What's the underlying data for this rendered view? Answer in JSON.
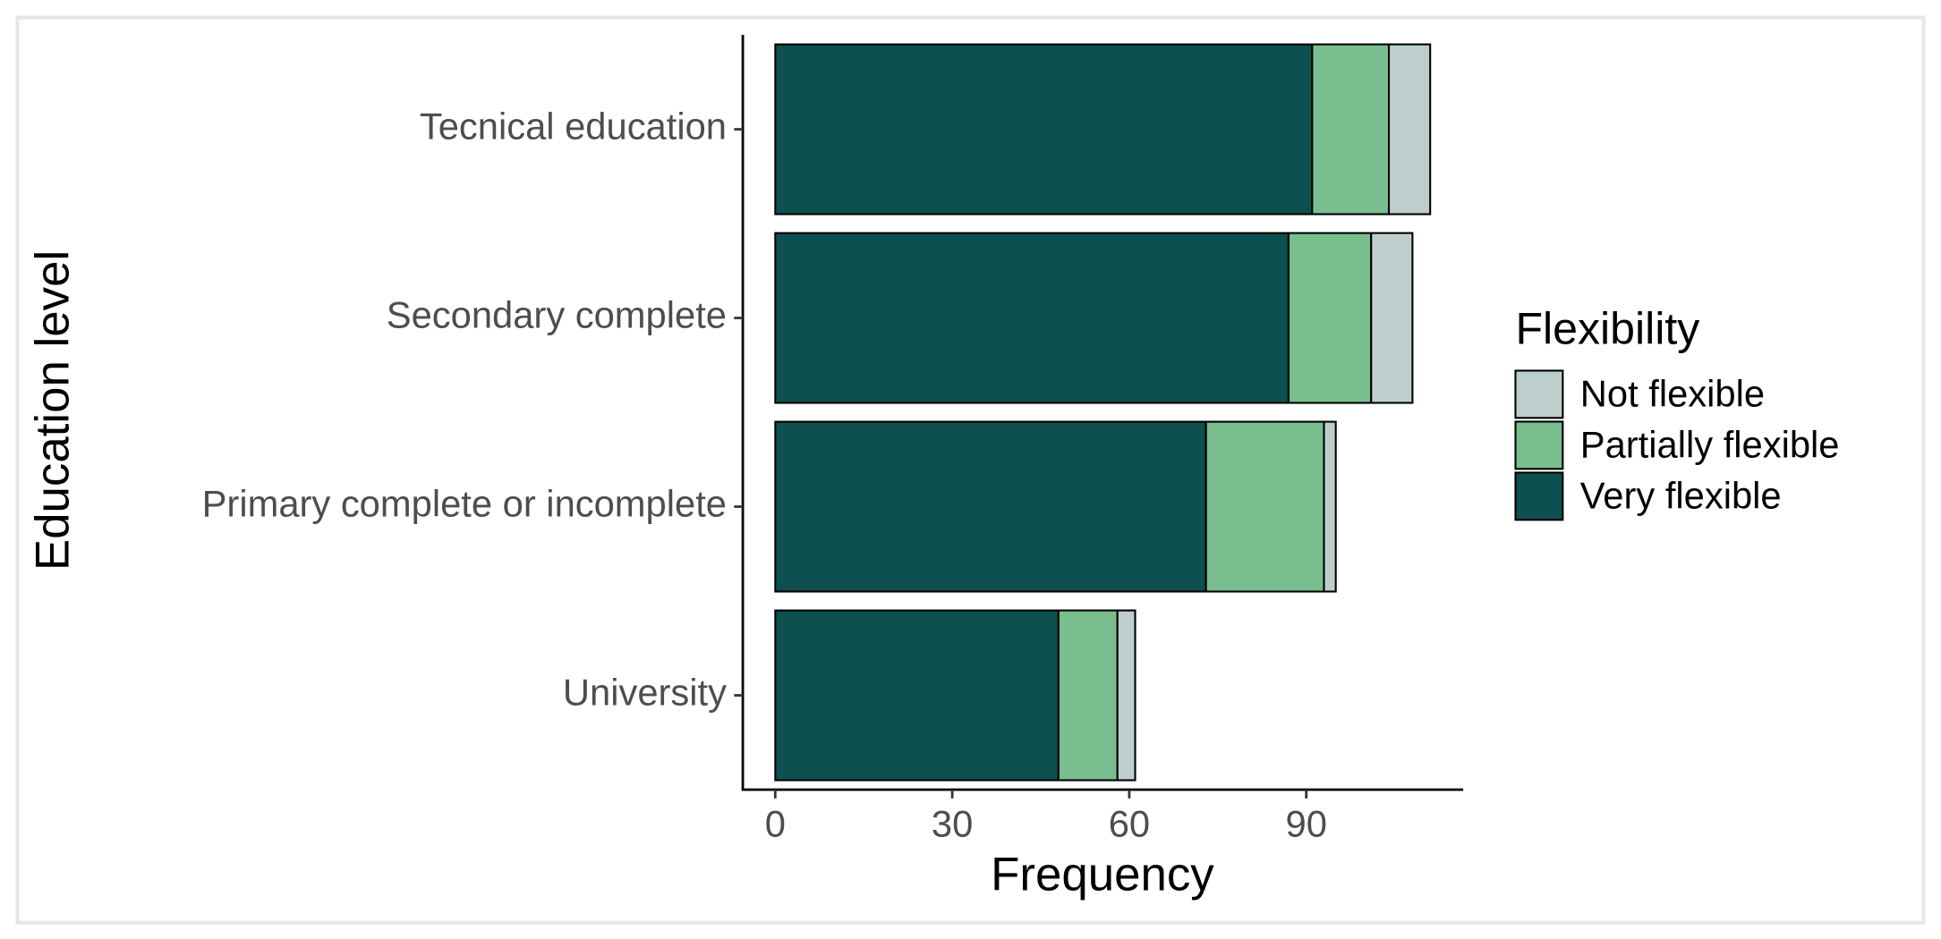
{
  "chart_data": {
    "type": "stacked-horizontal-bar",
    "x_label": "Frequency",
    "y_label": "Education level",
    "categories": [
      "Tecnical education",
      "Secondary complete",
      "Primary complete or incomplete",
      "University"
    ],
    "series": [
      {
        "name": "Not flexible",
        "color": "#bccfcd",
        "values": [
          7,
          7,
          2,
          3
        ]
      },
      {
        "name": "Partially flexible",
        "color": "#78be8f",
        "values": [
          13,
          14,
          20,
          10
        ]
      },
      {
        "name": "Very flexible",
        "color": "#0e4f4f",
        "values": [
          91,
          87,
          73,
          48
        ]
      }
    ],
    "legend_title": "Flexibility",
    "legend_position": "right",
    "xlim": [
      -5.5,
      116.6
    ],
    "xticks": [
      0,
      30,
      60,
      90
    ],
    "grid": false
  }
}
